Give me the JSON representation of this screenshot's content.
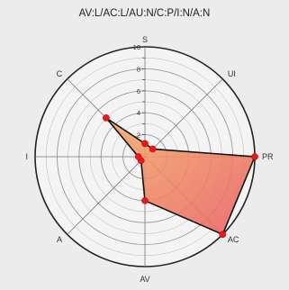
{
  "chart_data": {
    "type": "radar",
    "title": "AV:L/AC:L/AU:N/C:P/I:N/A:N",
    "axes": [
      "S",
      "UI",
      "PR",
      "AC",
      "AV",
      "A",
      "I",
      "C"
    ],
    "values": [
      1.2,
      1.0,
      10.0,
      10.0,
      4.0,
      0.5,
      0.6,
      5.0
    ],
    "rlim": [
      0,
      10
    ],
    "ticks": [
      2,
      4,
      6,
      8,
      10
    ],
    "grid": true,
    "colors": {
      "fill_start": "#f4b06a",
      "fill_end": "#ea5d62",
      "outline": "#111111",
      "marker": "#e8191b",
      "grid": "#9a9a9a",
      "background": "#f4f4f4"
    }
  }
}
